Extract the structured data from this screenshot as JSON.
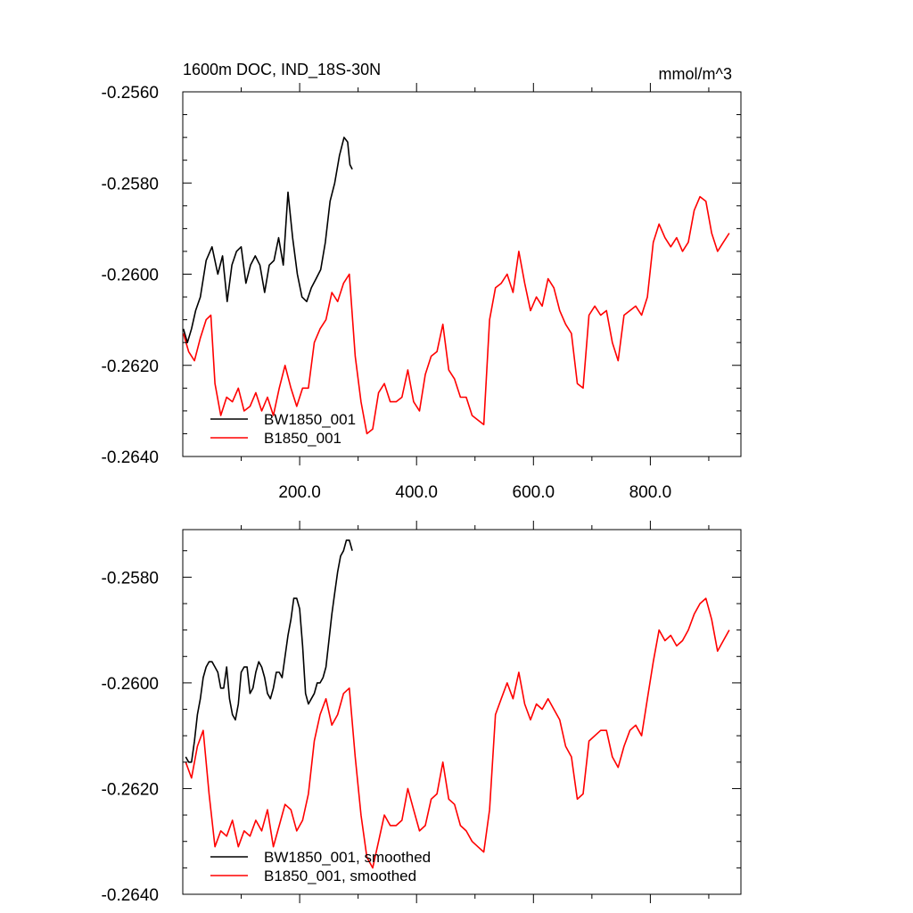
{
  "chart_data": [
    {
      "type": "line",
      "title": "1600m DOC, IND_18S-30N",
      "units": "mmol/m^3",
      "xlim": [
        0,
        955
      ],
      "ylim": [
        -0.264,
        -0.256
      ],
      "yticks": [
        -0.256,
        -0.258,
        -0.26,
        -0.262,
        -0.264
      ],
      "ytick_labels": [
        "-0.2560",
        "-0.2580",
        "-0.2600",
        "-0.2620",
        "-0.2640"
      ],
      "xticks": [
        200,
        400,
        600,
        800
      ],
      "xtick_labels": [
        "200.0",
        "400.0",
        "600.0",
        "800.0"
      ],
      "legend_position": "bottom-left",
      "series": [
        {
          "name": "BW1850_001",
          "color": "#000000",
          "x": [
            1,
            8,
            15,
            22,
            30,
            40,
            50,
            60,
            68,
            76,
            84,
            92,
            100,
            108,
            116,
            124,
            132,
            140,
            148,
            156,
            164,
            172,
            180,
            188,
            196,
            204,
            212,
            220,
            228,
            236,
            244,
            252,
            260,
            268,
            276,
            282,
            286,
            290
          ],
          "y": [
            -0.2612,
            -0.2615,
            -0.2612,
            -0.2608,
            -0.2605,
            -0.2597,
            -0.2594,
            -0.26,
            -0.2596,
            -0.2606,
            -0.2598,
            -0.2595,
            -0.2594,
            -0.2602,
            -0.2598,
            -0.2596,
            -0.2598,
            -0.2604,
            -0.2598,
            -0.2597,
            -0.2592,
            -0.2598,
            -0.2582,
            -0.2592,
            -0.26,
            -0.2605,
            -0.2606,
            -0.2603,
            -0.2601,
            -0.2599,
            -0.2593,
            -0.2584,
            -0.258,
            -0.2574,
            -0.257,
            -0.2571,
            -0.2576,
            -0.2577
          ]
        },
        {
          "name": "B1850_001",
          "color": "#ff0000",
          "x": [
            1,
            10,
            20,
            30,
            40,
            48,
            55,
            65,
            75,
            85,
            95,
            105,
            115,
            125,
            135,
            145,
            155,
            165,
            175,
            185,
            195,
            205,
            215,
            225,
            235,
            245,
            255,
            265,
            275,
            285,
            295,
            305,
            315,
            325,
            335,
            345,
            355,
            365,
            375,
            385,
            395,
            405,
            415,
            425,
            435,
            445,
            455,
            465,
            475,
            485,
            495,
            505,
            515,
            525,
            535,
            545,
            555,
            565,
            575,
            585,
            595,
            605,
            615,
            625,
            635,
            645,
            655,
            665,
            675,
            685,
            695,
            705,
            715,
            725,
            735,
            745,
            755,
            765,
            775,
            785,
            795,
            805,
            815,
            825,
            835,
            845,
            855,
            865,
            875,
            885,
            895,
            905,
            915,
            925,
            935
          ],
          "y": [
            -0.2613,
            -0.2617,
            -0.2619,
            -0.2614,
            -0.261,
            -0.2609,
            -0.2624,
            -0.2631,
            -0.2627,
            -0.2628,
            -0.2625,
            -0.263,
            -0.2629,
            -0.2626,
            -0.263,
            -0.2627,
            -0.2631,
            -0.2625,
            -0.262,
            -0.2625,
            -0.2629,
            -0.2625,
            -0.2625,
            -0.2615,
            -0.2612,
            -0.261,
            -0.2604,
            -0.2606,
            -0.2602,
            -0.26,
            -0.2618,
            -0.2628,
            -0.2635,
            -0.2634,
            -0.2626,
            -0.2624,
            -0.2628,
            -0.2628,
            -0.2627,
            -0.2621,
            -0.2628,
            -0.263,
            -0.2622,
            -0.2618,
            -0.2617,
            -0.2611,
            -0.2621,
            -0.2623,
            -0.2627,
            -0.2627,
            -0.2631,
            -0.2632,
            -0.2633,
            -0.261,
            -0.2603,
            -0.2602,
            -0.26,
            -0.2604,
            -0.2595,
            -0.2602,
            -0.2608,
            -0.2605,
            -0.2607,
            -0.2601,
            -0.2603,
            -0.2608,
            -0.2611,
            -0.2613,
            -0.2624,
            -0.2625,
            -0.2609,
            -0.2607,
            -0.2609,
            -0.2608,
            -0.2615,
            -0.2619,
            -0.2609,
            -0.2608,
            -0.2607,
            -0.2609,
            -0.2605,
            -0.2593,
            -0.2589,
            -0.2592,
            -0.2594,
            -0.2592,
            -0.2595,
            -0.2593,
            -0.2586,
            -0.2583,
            -0.2584,
            -0.2591,
            -0.2595,
            -0.2593,
            -0.2591
          ]
        }
      ]
    },
    {
      "type": "line",
      "xlim": [
        0,
        955
      ],
      "ylim": [
        -0.264,
        -0.2571
      ],
      "yticks": [
        -0.258,
        -0.26,
        -0.262,
        -0.264
      ],
      "ytick_labels": [
        "-0.2580",
        "-0.2600",
        "-0.2620",
        "-0.2640"
      ],
      "xticks": [
        200,
        400,
        600,
        800
      ],
      "legend_position": "bottom-left",
      "series": [
        {
          "name": "BW1850_001, smoothed",
          "color": "#000000",
          "x": [
            5,
            10,
            15,
            20,
            25,
            30,
            35,
            40,
            45,
            50,
            55,
            60,
            65,
            70,
            75,
            80,
            85,
            90,
            95,
            100,
            105,
            110,
            115,
            120,
            125,
            130,
            135,
            140,
            145,
            150,
            155,
            160,
            165,
            170,
            175,
            180,
            185,
            190,
            195,
            200,
            205,
            210,
            215,
            220,
            225,
            230,
            235,
            240,
            245,
            250,
            255,
            260,
            265,
            270,
            275,
            280,
            285,
            290
          ],
          "y": [
            -0.2614,
            -0.2615,
            -0.2615,
            -0.2611,
            -0.2606,
            -0.2603,
            -0.2599,
            -0.2597,
            -0.2596,
            -0.2596,
            -0.2597,
            -0.2598,
            -0.2601,
            -0.2601,
            -0.2597,
            -0.2603,
            -0.2606,
            -0.2607,
            -0.2604,
            -0.2598,
            -0.2597,
            -0.2597,
            -0.2602,
            -0.2601,
            -0.2598,
            -0.2596,
            -0.2597,
            -0.2599,
            -0.2602,
            -0.2603,
            -0.2601,
            -0.2598,
            -0.2598,
            -0.2599,
            -0.2595,
            -0.2591,
            -0.2588,
            -0.2584,
            -0.2584,
            -0.2586,
            -0.2593,
            -0.2602,
            -0.2604,
            -0.2603,
            -0.2602,
            -0.26,
            -0.26,
            -0.2599,
            -0.2597,
            -0.2592,
            -0.2587,
            -0.2583,
            -0.2579,
            -0.2576,
            -0.2575,
            -0.2573,
            -0.2573,
            -0.2575
          ]
        },
        {
          "name": "B1850_001, smoothed",
          "color": "#ff0000",
          "x": [
            5,
            15,
            25,
            35,
            45,
            55,
            65,
            75,
            85,
            95,
            105,
            115,
            125,
            135,
            145,
            155,
            165,
            175,
            185,
            195,
            205,
            215,
            225,
            235,
            245,
            255,
            265,
            275,
            285,
            295,
            305,
            315,
            325,
            335,
            345,
            355,
            365,
            375,
            385,
            395,
            405,
            415,
            425,
            435,
            445,
            455,
            465,
            475,
            485,
            495,
            505,
            515,
            525,
            535,
            545,
            555,
            565,
            575,
            585,
            595,
            605,
            615,
            625,
            635,
            645,
            655,
            665,
            675,
            685,
            695,
            705,
            715,
            725,
            735,
            745,
            755,
            765,
            775,
            785,
            795,
            805,
            815,
            825,
            835,
            845,
            855,
            865,
            875,
            885,
            895,
            905,
            915,
            925,
            935
          ],
          "y": [
            -0.2615,
            -0.2618,
            -0.2612,
            -0.2609,
            -0.2621,
            -0.2631,
            -0.2628,
            -0.2629,
            -0.2626,
            -0.2631,
            -0.2628,
            -0.2629,
            -0.2626,
            -0.2628,
            -0.2624,
            -0.2631,
            -0.2627,
            -0.2623,
            -0.2624,
            -0.2628,
            -0.2626,
            -0.2621,
            -0.2611,
            -0.2606,
            -0.2603,
            -0.2608,
            -0.2606,
            -0.2602,
            -0.2601,
            -0.2614,
            -0.2625,
            -0.2633,
            -0.2635,
            -0.263,
            -0.2625,
            -0.2627,
            -0.2627,
            -0.2626,
            -0.262,
            -0.2624,
            -0.2628,
            -0.2627,
            -0.2622,
            -0.2621,
            -0.2615,
            -0.2622,
            -0.2623,
            -0.2627,
            -0.2628,
            -0.263,
            -0.2631,
            -0.2632,
            -0.2624,
            -0.2606,
            -0.2603,
            -0.26,
            -0.2603,
            -0.2598,
            -0.2604,
            -0.2607,
            -0.2604,
            -0.2605,
            -0.2603,
            -0.2605,
            -0.2607,
            -0.2612,
            -0.2614,
            -0.2622,
            -0.2621,
            -0.2611,
            -0.261,
            -0.2609,
            -0.2609,
            -0.2614,
            -0.2616,
            -0.2612,
            -0.2609,
            -0.2608,
            -0.261,
            -0.2603,
            -0.2596,
            -0.259,
            -0.2592,
            -0.2591,
            -0.2593,
            -0.2592,
            -0.259,
            -0.2587,
            -0.2585,
            -0.2584,
            -0.2588,
            -0.2594,
            -0.2592,
            -0.259
          ]
        }
      ]
    }
  ]
}
